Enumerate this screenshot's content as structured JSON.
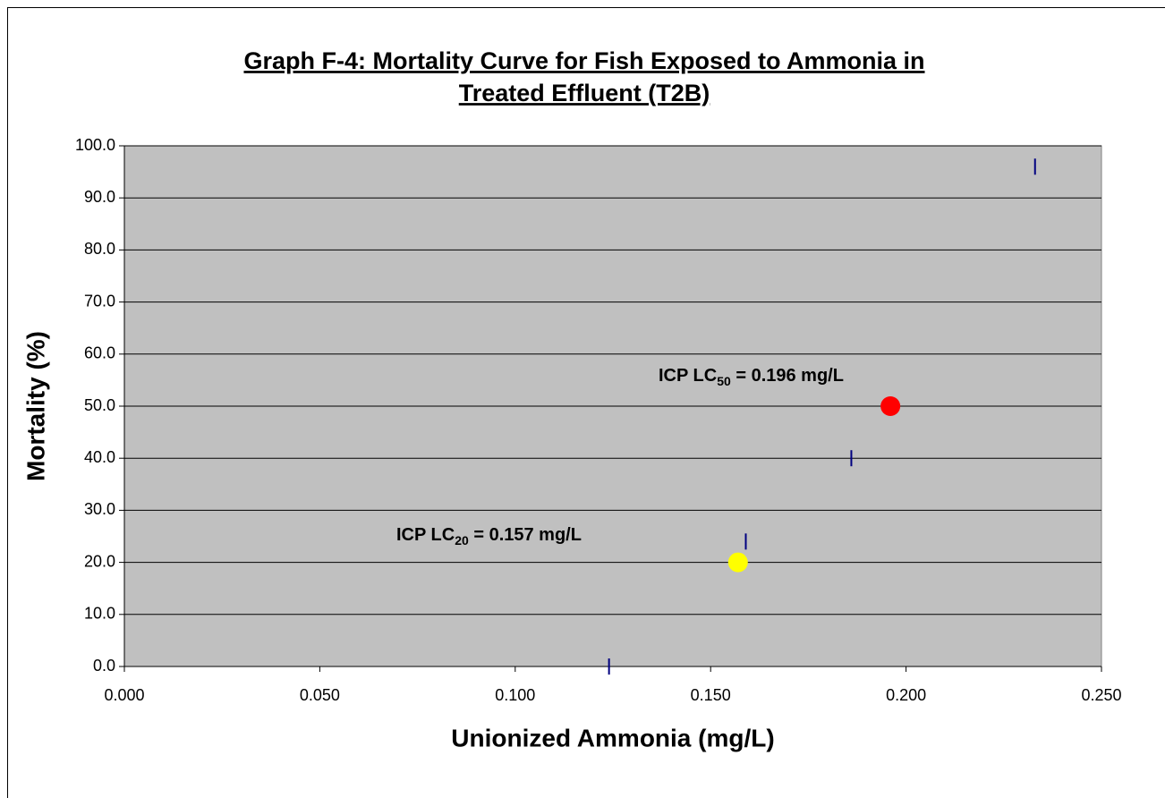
{
  "chart_data": {
    "type": "scatter",
    "title": [
      "Graph F-4: Mortality Curve for Fish Exposed to Ammonia in",
      "Treated Effluent (T2B)"
    ],
    "x_label": "Unionized Ammonia (mg/L)",
    "y_label": "Mortality (%)",
    "xlim": [
      0,
      0.25
    ],
    "ylim": [
      0,
      100
    ],
    "xticks": [
      {
        "value": 0,
        "label": "0.000"
      },
      {
        "value": 0.05,
        "label": "0.050"
      },
      {
        "value": 0.1,
        "label": "0.100"
      },
      {
        "value": 0.15,
        "label": "0.150"
      },
      {
        "value": 0.2,
        "label": "0.200"
      },
      {
        "value": 0.25,
        "label": "0.250"
      }
    ],
    "yticks": [
      {
        "value": 0,
        "label": "0.0"
      },
      {
        "value": 10,
        "label": "10.0"
      },
      {
        "value": 20,
        "label": "20.0"
      },
      {
        "value": 30,
        "label": "30.0"
      },
      {
        "value": 40,
        "label": "40.0"
      },
      {
        "value": 50,
        "label": "50.0"
      },
      {
        "value": 60,
        "label": "60.0"
      },
      {
        "value": 70,
        "label": "70.0"
      },
      {
        "value": 80,
        "label": "80.0"
      },
      {
        "value": 90,
        "label": "90.0"
      },
      {
        "value": 100,
        "label": "100.0"
      }
    ],
    "grid": true,
    "plot_background": "#c0c0c0",
    "series": [
      {
        "color": "#000080",
        "marker": "dash",
        "x": [
          0.124,
          0.159,
          0.186,
          0.233
        ],
        "values": [
          0,
          24,
          40,
          96
        ]
      },
      {
        "color": "#ffff00",
        "marker": "circle",
        "x": [
          0.157
        ],
        "values": [
          20
        ]
      },
      {
        "color": "#ff0000",
        "marker": "circle",
        "x": [
          0.196
        ],
        "values": [
          50
        ]
      }
    ],
    "annotations": [
      {
        "text": "ICP LC",
        "sub": "50",
        "rest": " = 0.196 mg/L"
      },
      {
        "text": "ICP LC",
        "sub": "20",
        "rest": " = 0.157 mg/L"
      }
    ]
  }
}
